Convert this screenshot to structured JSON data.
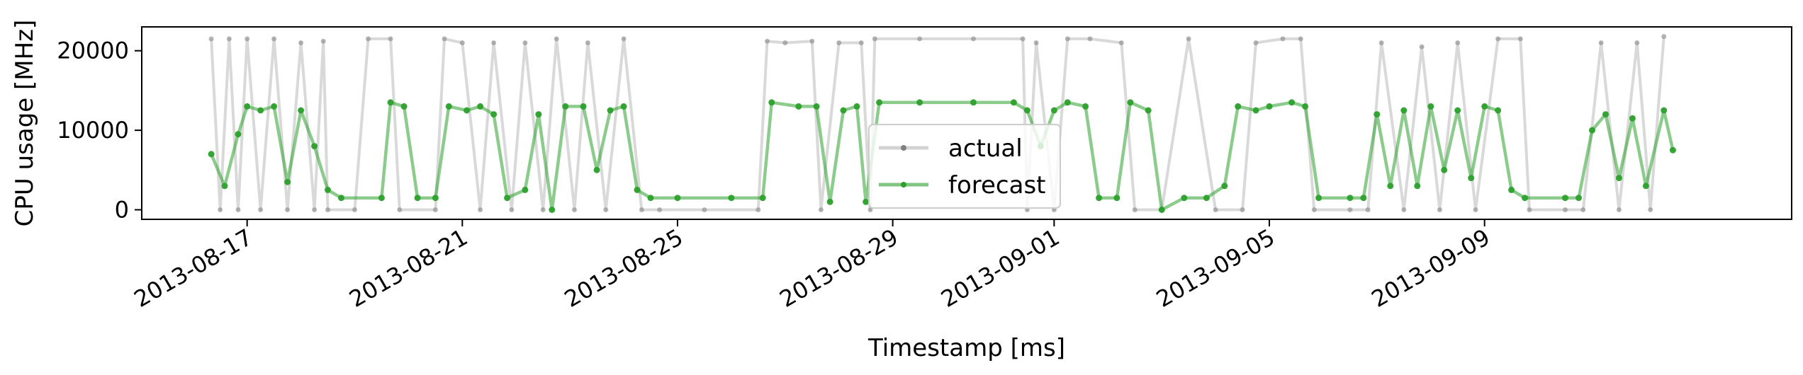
{
  "chart_data": {
    "type": "line",
    "title": "",
    "xlabel": "Timestamp [ms]",
    "ylabel": "CPU usage [MHz]",
    "x_tick_labels": [
      "2013-08-17",
      "2013-08-21",
      "2013-08-25",
      "2013-08-29",
      "2013-09-01",
      "2013-09-05",
      "2013-09-09"
    ],
    "y_ticks": [
      0,
      10000,
      20000
    ],
    "y_tick_labels": [
      "0",
      "10000",
      "20000"
    ],
    "ylim": [
      -1200,
      23000
    ],
    "xlim": [
      "2013-08-15T01:00",
      "2013-09-14T17:00"
    ],
    "legend_placement": "center",
    "grid": false,
    "series": [
      {
        "name": "actual",
        "color": "#808080",
        "points": [
          [
            "2013-08-16T08:00",
            21500
          ],
          [
            "2013-08-16T12:00",
            0
          ],
          [
            "2013-08-16T16:00",
            21500
          ],
          [
            "2013-08-16T20:00",
            0
          ],
          [
            "2013-08-17T00:00",
            21500
          ],
          [
            "2013-08-17T06:00",
            0
          ],
          [
            "2013-08-17T12:00",
            21500
          ],
          [
            "2013-08-17T18:00",
            0
          ],
          [
            "2013-08-18T00:00",
            21000
          ],
          [
            "2013-08-18T06:00",
            0
          ],
          [
            "2013-08-18T10:00",
            21200
          ],
          [
            "2013-08-18T12:00",
            0
          ],
          [
            "2013-08-19T00:00",
            0
          ],
          [
            "2013-08-19T06:00",
            21500
          ],
          [
            "2013-08-19T16:00",
            21500
          ],
          [
            "2013-08-19T20:00",
            0
          ],
          [
            "2013-08-20T12:00",
            0
          ],
          [
            "2013-08-20T16:00",
            21500
          ],
          [
            "2013-08-21T00:00",
            21000
          ],
          [
            "2013-08-21T08:00",
            0
          ],
          [
            "2013-08-21T14:00",
            21000
          ],
          [
            "2013-08-21T22:00",
            0
          ],
          [
            "2013-08-22T04:00",
            21000
          ],
          [
            "2013-08-22T12:00",
            0
          ],
          [
            "2013-08-22T18:00",
            21500
          ],
          [
            "2013-08-23T02:00",
            0
          ],
          [
            "2013-08-23T08:00",
            21000
          ],
          [
            "2013-08-23T16:00",
            0
          ],
          [
            "2013-08-24T00:00",
            21500
          ],
          [
            "2013-08-24T08:00",
            0
          ],
          [
            "2013-08-24T16:00",
            0
          ],
          [
            "2013-08-25T12:00",
            0
          ],
          [
            "2013-08-26T12:00",
            0
          ],
          [
            "2013-08-26T16:00",
            21200
          ],
          [
            "2013-08-27T00:00",
            21000
          ],
          [
            "2013-08-27T12:00",
            21200
          ],
          [
            "2013-08-27T16:00",
            0
          ],
          [
            "2013-08-28T00:00",
            21000
          ],
          [
            "2013-08-28T10:00",
            21000
          ],
          [
            "2013-08-28T14:00",
            0
          ],
          [
            "2013-08-28T16:00",
            21500
          ],
          [
            "2013-08-29T12:00",
            21500
          ],
          [
            "2013-08-30T12:00",
            21500
          ],
          [
            "2013-08-31T10:00",
            21500
          ],
          [
            "2013-08-31T12:00",
            0
          ],
          [
            "2013-08-31T16:00",
            21000
          ],
          [
            "2013-09-01T00:00",
            0
          ],
          [
            "2013-09-01T06:00",
            21500
          ],
          [
            "2013-09-01T16:00",
            21500
          ],
          [
            "2013-09-02T06:00",
            21000
          ],
          [
            "2013-09-02T12:00",
            0
          ],
          [
            "2013-09-03T00:00",
            0
          ],
          [
            "2013-09-03T12:00",
            21500
          ],
          [
            "2013-09-04T00:00",
            0
          ],
          [
            "2013-09-04T12:00",
            0
          ],
          [
            "2013-09-04T18:00",
            21000
          ],
          [
            "2013-09-05T06:00",
            21500
          ],
          [
            "2013-09-05T14:00",
            21500
          ],
          [
            "2013-09-05T20:00",
            0
          ],
          [
            "2013-09-06T12:00",
            0
          ],
          [
            "2013-09-06T20:00",
            0
          ],
          [
            "2013-09-07T02:00",
            21000
          ],
          [
            "2013-09-07T12:00",
            0
          ],
          [
            "2013-09-07T20:00",
            20500
          ],
          [
            "2013-09-08T04:00",
            0
          ],
          [
            "2013-09-08T12:00",
            21000
          ],
          [
            "2013-09-08T20:00",
            0
          ],
          [
            "2013-09-09T06:00",
            21500
          ],
          [
            "2013-09-09T16:00",
            21500
          ],
          [
            "2013-09-09T20:00",
            0
          ],
          [
            "2013-09-10T12:00",
            0
          ],
          [
            "2013-09-10T20:00",
            0
          ],
          [
            "2013-09-11T04:00",
            21000
          ],
          [
            "2013-09-11T12:00",
            0
          ],
          [
            "2013-09-11T20:00",
            21000
          ],
          [
            "2013-09-12T02:00",
            0
          ],
          [
            "2013-09-12T08:00",
            21800
          ]
        ]
      },
      {
        "name": "forecast",
        "color": "#2ca02c",
        "points": [
          [
            "2013-08-16T08:00",
            7000
          ],
          [
            "2013-08-16T14:00",
            3000
          ],
          [
            "2013-08-16T20:00",
            9500
          ],
          [
            "2013-08-17T00:00",
            13000
          ],
          [
            "2013-08-17T06:00",
            12500
          ],
          [
            "2013-08-17T12:00",
            13000
          ],
          [
            "2013-08-17T18:00",
            3500
          ],
          [
            "2013-08-18T00:00",
            12500
          ],
          [
            "2013-08-18T06:00",
            8000
          ],
          [
            "2013-08-18T12:00",
            2500
          ],
          [
            "2013-08-18T18:00",
            1500
          ],
          [
            "2013-08-19T12:00",
            1500
          ],
          [
            "2013-08-19T16:00",
            13500
          ],
          [
            "2013-08-19T22:00",
            13000
          ],
          [
            "2013-08-20T04:00",
            1500
          ],
          [
            "2013-08-20T12:00",
            1500
          ],
          [
            "2013-08-20T18:00",
            13000
          ],
          [
            "2013-08-21T02:00",
            12500
          ],
          [
            "2013-08-21T08:00",
            13000
          ],
          [
            "2013-08-21T14:00",
            12000
          ],
          [
            "2013-08-21T20:00",
            1500
          ],
          [
            "2013-08-22T04:00",
            2500
          ],
          [
            "2013-08-22T10:00",
            12000
          ],
          [
            "2013-08-22T16:00",
            0
          ],
          [
            "2013-08-22T22:00",
            13000
          ],
          [
            "2013-08-23T06:00",
            13000
          ],
          [
            "2013-08-23T12:00",
            5000
          ],
          [
            "2013-08-23T18:00",
            12500
          ],
          [
            "2013-08-24T00:00",
            13000
          ],
          [
            "2013-08-24T06:00",
            2500
          ],
          [
            "2013-08-24T12:00",
            1500
          ],
          [
            "2013-08-25T00:00",
            1500
          ],
          [
            "2013-08-26T00:00",
            1500
          ],
          [
            "2013-08-26T14:00",
            1500
          ],
          [
            "2013-08-26T18:00",
            13500
          ],
          [
            "2013-08-27T06:00",
            13000
          ],
          [
            "2013-08-27T14:00",
            13000
          ],
          [
            "2013-08-27T20:00",
            1000
          ],
          [
            "2013-08-28T02:00",
            12500
          ],
          [
            "2013-08-28T08:00",
            13000
          ],
          [
            "2013-08-28T12:00",
            1000
          ],
          [
            "2013-08-28T18:00",
            13500
          ],
          [
            "2013-08-29T12:00",
            13500
          ],
          [
            "2013-08-30T12:00",
            13500
          ],
          [
            "2013-08-31T06:00",
            13500
          ],
          [
            "2013-08-31T12:00",
            12500
          ],
          [
            "2013-08-31T18:00",
            8000
          ],
          [
            "2013-09-01T00:00",
            12500
          ],
          [
            "2013-09-01T06:00",
            13500
          ],
          [
            "2013-09-01T14:00",
            13000
          ],
          [
            "2013-09-01T20:00",
            1500
          ],
          [
            "2013-09-02T04:00",
            1500
          ],
          [
            "2013-09-02T10:00",
            13500
          ],
          [
            "2013-09-02T18:00",
            12500
          ],
          [
            "2013-09-03T00:00",
            0
          ],
          [
            "2013-09-03T10:00",
            1500
          ],
          [
            "2013-09-03T20:00",
            1500
          ],
          [
            "2013-09-04T04:00",
            3000
          ],
          [
            "2013-09-04T10:00",
            13000
          ],
          [
            "2013-09-04T18:00",
            12500
          ],
          [
            "2013-09-05T00:00",
            13000
          ],
          [
            "2013-09-05T10:00",
            13500
          ],
          [
            "2013-09-05T16:00",
            13000
          ],
          [
            "2013-09-05T22:00",
            1500
          ],
          [
            "2013-09-06T12:00",
            1500
          ],
          [
            "2013-09-06T18:00",
            1500
          ],
          [
            "2013-09-07T00:00",
            12000
          ],
          [
            "2013-09-07T06:00",
            3000
          ],
          [
            "2013-09-07T12:00",
            12500
          ],
          [
            "2013-09-07T18:00",
            3000
          ],
          [
            "2013-09-08T00:00",
            13000
          ],
          [
            "2013-09-08T06:00",
            5000
          ],
          [
            "2013-09-08T12:00",
            12500
          ],
          [
            "2013-09-08T18:00",
            4000
          ],
          [
            "2013-09-09T00:00",
            13000
          ],
          [
            "2013-09-09T06:00",
            12500
          ],
          [
            "2013-09-09T12:00",
            2500
          ],
          [
            "2013-09-09T18:00",
            1500
          ],
          [
            "2013-09-10T12:00",
            1500
          ],
          [
            "2013-09-10T18:00",
            1500
          ],
          [
            "2013-09-11T00:00",
            10000
          ],
          [
            "2013-09-11T06:00",
            12000
          ],
          [
            "2013-09-11T12:00",
            4000
          ],
          [
            "2013-09-11T18:00",
            11500
          ],
          [
            "2013-09-12T00:00",
            3000
          ],
          [
            "2013-09-12T08:00",
            12500
          ],
          [
            "2013-09-12T12:00",
            7500
          ]
        ]
      }
    ]
  }
}
